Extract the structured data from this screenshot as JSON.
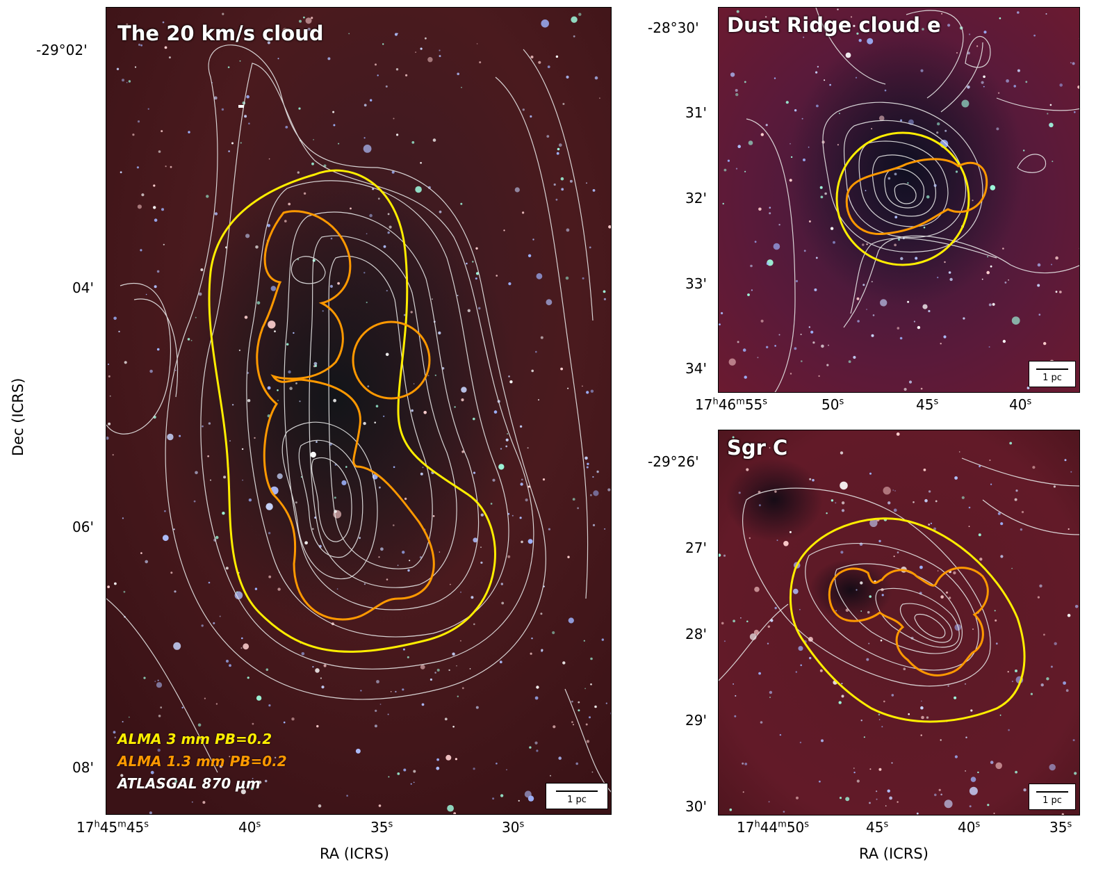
{
  "panels": {
    "left": {
      "title": "The 20 km/s cloud",
      "legend": [
        {
          "text": "ALMA 3 mm PB=0.2",
          "color": "#ffee00"
        },
        {
          "text": "ALMA 1.3 mm PB=0.2",
          "color": "#ff9900"
        },
        {
          "text": "ATLASGAL 870 μm",
          "color": "#ffffff"
        }
      ],
      "scalebar": "1 pc",
      "y_ticks": [
        "-29°02'",
        "04'",
        "06'",
        "08'"
      ],
      "x_ticks": [
        {
          "h": "17",
          "m": "45",
          "s": "45"
        },
        {
          "s": "40"
        },
        {
          "s": "35"
        },
        {
          "s": "30"
        }
      ]
    },
    "top_right": {
      "title": "Dust Ridge cloud e",
      "scalebar": "1 pc",
      "y_ticks": [
        "-28°30'",
        "31'",
        "32'",
        "33'",
        "34'"
      ],
      "x_ticks": [
        {
          "h": "17",
          "m": "46",
          "s": "55"
        },
        {
          "s": "50"
        },
        {
          "s": "45"
        },
        {
          "s": "40"
        }
      ]
    },
    "bottom_right": {
      "title": "Sgr C",
      "scalebar": "1 pc",
      "y_ticks": [
        "-29°26'",
        "27'",
        "28'",
        "29'",
        "30'"
      ],
      "x_ticks": [
        {
          "h": "17",
          "m": "44",
          "s": "50"
        },
        {
          "s": "45"
        },
        {
          "s": "40"
        },
        {
          "s": "35"
        }
      ]
    }
  },
  "axis_labels": {
    "y": "Dec (ICRS)",
    "x_left": "RA (ICRS)",
    "x_right": "RA (ICRS)"
  },
  "units": {
    "h": "h",
    "m": "m",
    "s": "s"
  },
  "colors": {
    "alma3mm": "#ffee00",
    "alma13mm": "#ff9900",
    "contour": "#e8e8e8"
  }
}
